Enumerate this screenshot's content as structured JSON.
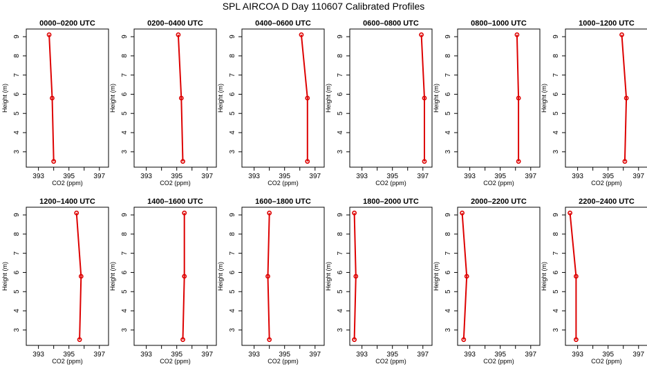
{
  "title": "SPL AIRCOA D  Day 110607  Calibrated Profiles",
  "line_color": "#dd0000",
  "chart_data": [
    {
      "type": "line",
      "title": "0000–0200 UTC",
      "xlabel": "CO2 (ppm)",
      "ylabel": "Height (m)",
      "xlim": [
        392.2,
        397.6
      ],
      "ylim": [
        2.2,
        9.4
      ],
      "xticks": [
        "393",
        "395",
        "397"
      ],
      "yticks": [
        "3",
        "4",
        "5",
        "6",
        "7",
        "8",
        "9"
      ],
      "points": [
        {
          "x": 393.7,
          "y": 9.1
        },
        {
          "x": 393.9,
          "y": 5.8
        },
        {
          "x": 394.0,
          "y": 2.5
        }
      ]
    },
    {
      "type": "line",
      "title": "0200–0400 UTC",
      "xlabel": "CO2 (ppm)",
      "ylabel": "Height (m)",
      "xlim": [
        392.2,
        397.6
      ],
      "ylim": [
        2.2,
        9.4
      ],
      "xticks": [
        "393",
        "395",
        "397"
      ],
      "yticks": [
        "3",
        "4",
        "5",
        "6",
        "7",
        "8",
        "9"
      ],
      "points": [
        {
          "x": 395.1,
          "y": 9.1
        },
        {
          "x": 395.3,
          "y": 5.8
        },
        {
          "x": 395.4,
          "y": 2.5
        }
      ]
    },
    {
      "type": "line",
      "title": "0400–0600 UTC",
      "xlabel": "CO2 (ppm)",
      "ylabel": "Height (m)",
      "xlim": [
        392.2,
        397.6
      ],
      "ylim": [
        2.2,
        9.4
      ],
      "xticks": [
        "393",
        "395",
        "397"
      ],
      "yticks": [
        "3",
        "4",
        "5",
        "6",
        "7",
        "8",
        "9"
      ],
      "points": [
        {
          "x": 396.1,
          "y": 9.1
        },
        {
          "x": 396.5,
          "y": 5.8
        },
        {
          "x": 396.5,
          "y": 2.5
        }
      ]
    },
    {
      "type": "line",
      "title": "0600–0800 UTC",
      "xlabel": "CO2 (ppm)",
      "ylabel": "Height (m)",
      "xlim": [
        392.2,
        397.6
      ],
      "ylim": [
        2.2,
        9.4
      ],
      "xticks": [
        "393",
        "395",
        "397"
      ],
      "yticks": [
        "3",
        "4",
        "5",
        "6",
        "7",
        "8",
        "9"
      ],
      "points": [
        {
          "x": 396.9,
          "y": 9.1
        },
        {
          "x": 397.1,
          "y": 5.8
        },
        {
          "x": 397.1,
          "y": 2.5
        }
      ]
    },
    {
      "type": "line",
      "title": "0800–1000 UTC",
      "xlabel": "CO2 (ppm)",
      "ylabel": "Height (m)",
      "xlim": [
        392.2,
        397.6
      ],
      "ylim": [
        2.2,
        9.4
      ],
      "xticks": [
        "393",
        "395",
        "397"
      ],
      "yticks": [
        "3",
        "4",
        "5",
        "6",
        "7",
        "8",
        "9"
      ],
      "points": [
        {
          "x": 396.1,
          "y": 9.1
        },
        {
          "x": 396.2,
          "y": 5.8
        },
        {
          "x": 396.2,
          "y": 2.5
        }
      ]
    },
    {
      "type": "line",
      "title": "1000–1200 UTC",
      "xlabel": "CO2 (ppm)",
      "ylabel": "Height (m)",
      "xlim": [
        392.2,
        397.6
      ],
      "ylim": [
        2.2,
        9.4
      ],
      "xticks": [
        "393",
        "395",
        "397"
      ],
      "yticks": [
        "3",
        "4",
        "5",
        "6",
        "7",
        "8",
        "9"
      ],
      "points": [
        {
          "x": 395.9,
          "y": 9.1
        },
        {
          "x": 396.2,
          "y": 5.8
        },
        {
          "x": 396.1,
          "y": 2.5
        }
      ]
    },
    {
      "type": "line",
      "title": "1200–1400 UTC",
      "xlabel": "CO2 (ppm)",
      "ylabel": "Height (m)",
      "xlim": [
        392.2,
        397.6
      ],
      "ylim": [
        2.2,
        9.4
      ],
      "xticks": [
        "393",
        "395",
        "397"
      ],
      "yticks": [
        "3",
        "4",
        "5",
        "6",
        "7",
        "8",
        "9"
      ],
      "points": [
        {
          "x": 395.5,
          "y": 9.1
        },
        {
          "x": 395.8,
          "y": 5.8
        },
        {
          "x": 395.7,
          "y": 2.5
        }
      ]
    },
    {
      "type": "line",
      "title": "1400–1600 UTC",
      "xlabel": "CO2 (ppm)",
      "ylabel": "Height (m)",
      "xlim": [
        392.2,
        397.6
      ],
      "ylim": [
        2.2,
        9.4
      ],
      "xticks": [
        "393",
        "395",
        "397"
      ],
      "yticks": [
        "3",
        "4",
        "5",
        "6",
        "7",
        "8",
        "9"
      ],
      "points": [
        {
          "x": 395.5,
          "y": 9.1
        },
        {
          "x": 395.5,
          "y": 5.8
        },
        {
          "x": 395.4,
          "y": 2.5
        }
      ]
    },
    {
      "type": "line",
      "title": "1600–1800 UTC",
      "xlabel": "CO2 (ppm)",
      "ylabel": "Height (m)",
      "xlim": [
        392.2,
        397.6
      ],
      "ylim": [
        2.2,
        9.4
      ],
      "xticks": [
        "393",
        "395",
        "397"
      ],
      "yticks": [
        "3",
        "4",
        "5",
        "6",
        "7",
        "8",
        "9"
      ],
      "points": [
        {
          "x": 394.0,
          "y": 9.1
        },
        {
          "x": 393.9,
          "y": 5.8
        },
        {
          "x": 394.0,
          "y": 2.5
        }
      ]
    },
    {
      "type": "line",
      "title": "1800–2000 UTC",
      "xlabel": "CO2 (ppm)",
      "ylabel": "Height (m)",
      "xlim": [
        392.2,
        397.6
      ],
      "ylim": [
        2.2,
        9.4
      ],
      "xticks": [
        "393",
        "395",
        "397"
      ],
      "yticks": [
        "3",
        "4",
        "5",
        "6",
        "7",
        "8",
        "9"
      ],
      "points": [
        {
          "x": 392.5,
          "y": 9.1
        },
        {
          "x": 392.6,
          "y": 5.8
        },
        {
          "x": 392.5,
          "y": 2.5
        }
      ]
    },
    {
      "type": "line",
      "title": "2000–2200 UTC",
      "xlabel": "CO2 (ppm)",
      "ylabel": "Height (m)",
      "xlim": [
        392.2,
        397.6
      ],
      "ylim": [
        2.2,
        9.4
      ],
      "xticks": [
        "393",
        "395",
        "397"
      ],
      "yticks": [
        "3",
        "4",
        "5",
        "6",
        "7",
        "8",
        "9"
      ],
      "points": [
        {
          "x": 392.5,
          "y": 9.1
        },
        {
          "x": 392.8,
          "y": 5.8
        },
        {
          "x": 392.6,
          "y": 2.5
        }
      ]
    },
    {
      "type": "line",
      "title": "2200–2400 UTC",
      "xlabel": "CO2 (ppm)",
      "ylabel": "Height (m)",
      "xlim": [
        392.2,
        397.6
      ],
      "ylim": [
        2.2,
        9.4
      ],
      "xticks": [
        "393",
        "395",
        "397"
      ],
      "yticks": [
        "3",
        "4",
        "5",
        "6",
        "7",
        "8",
        "9"
      ],
      "points": [
        {
          "x": 392.5,
          "y": 9.1
        },
        {
          "x": 392.9,
          "y": 5.8
        },
        {
          "x": 392.9,
          "y": 2.5
        }
      ]
    }
  ]
}
